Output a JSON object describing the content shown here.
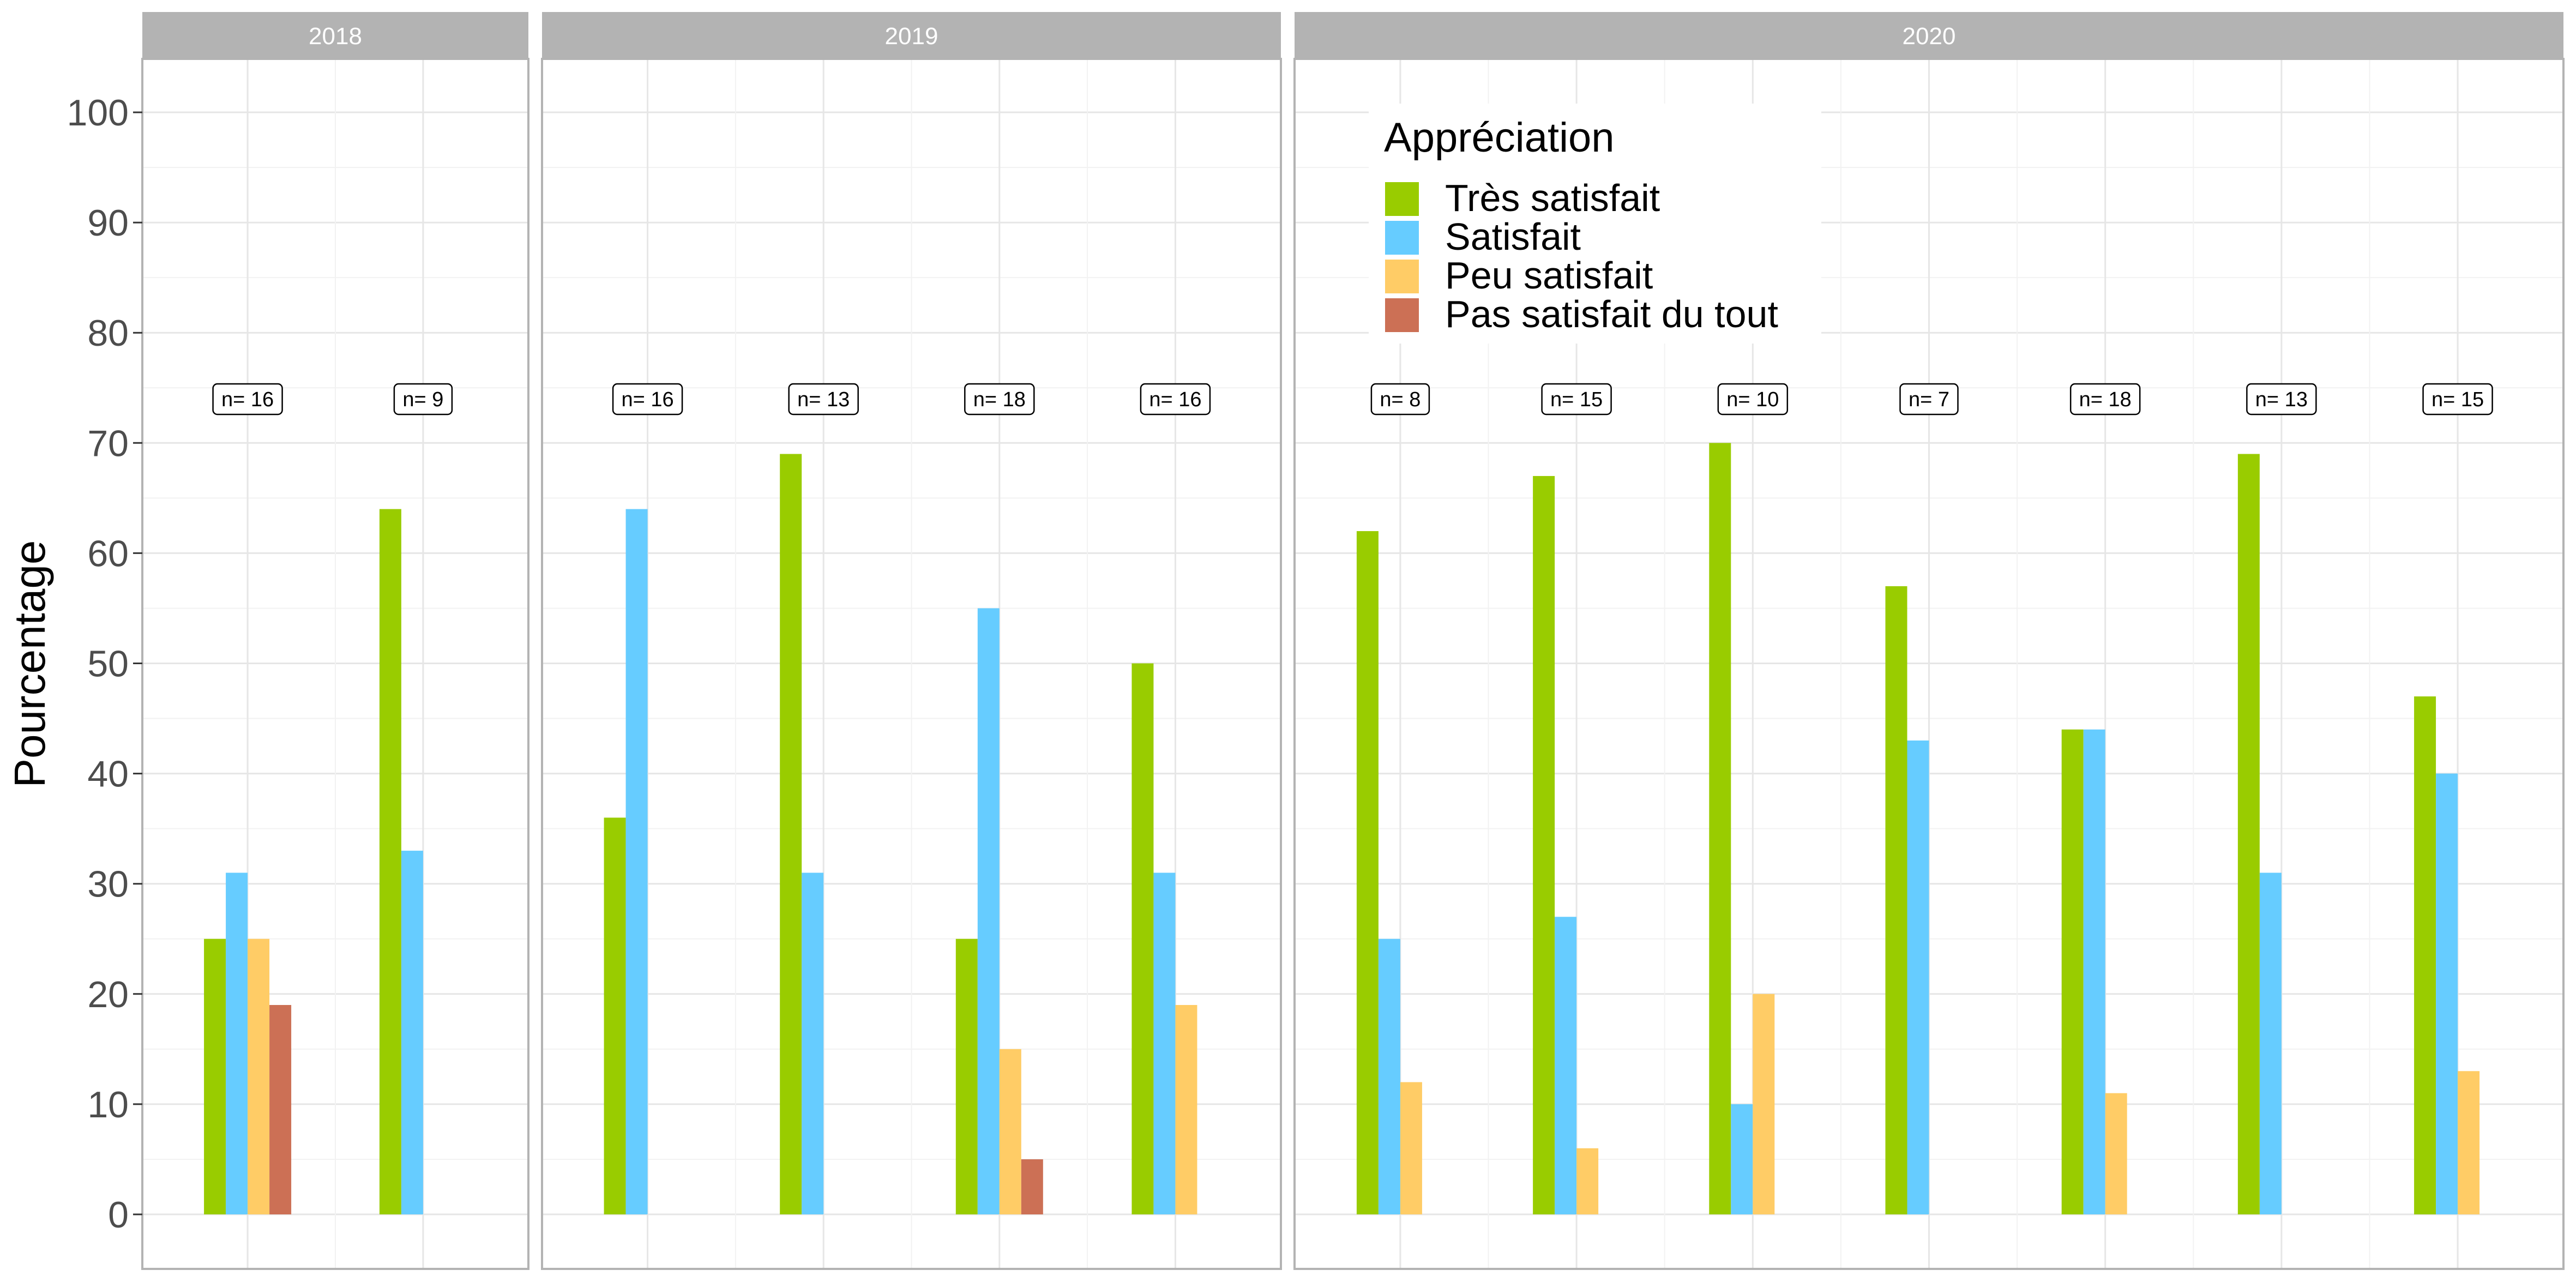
{
  "chart_data": {
    "type": "bar",
    "ylabel": "Pourcentage",
    "ylim": [
      0,
      105
    ],
    "yticks": [
      0,
      10,
      20,
      30,
      40,
      50,
      60,
      70,
      80,
      90,
      100
    ],
    "grid": true,
    "legend": {
      "title": "Appréciation",
      "placement": "top-inside-2020-panel",
      "entries": [
        "Très satisfait",
        "Satisfait",
        "Peu satisfait",
        "Pas satisfait du tout"
      ]
    },
    "series_colors": [
      "#99CC00",
      "#66CCFF",
      "#FFCC66",
      "#CC7055"
    ],
    "panels": [
      {
        "name": "2018",
        "groups": [
          {
            "n_label": "n= 16",
            "values": [
              25,
              31,
              25,
              19
            ]
          },
          {
            "n_label": "n= 9",
            "values": [
              64,
              33,
              0,
              0
            ]
          }
        ]
      },
      {
        "name": "2019",
        "groups": [
          {
            "n_label": "n= 16",
            "values": [
              36,
              64,
              0,
              0
            ]
          },
          {
            "n_label": "n= 13",
            "values": [
              69,
              31,
              0,
              0
            ]
          },
          {
            "n_label": "n= 18",
            "values": [
              25,
              55,
              15,
              5
            ]
          },
          {
            "n_label": "n= 16",
            "values": [
              50,
              31,
              19,
              0
            ]
          }
        ]
      },
      {
        "name": "2020",
        "groups": [
          {
            "n_label": "n= 8",
            "values": [
              62,
              25,
              12,
              0
            ]
          },
          {
            "n_label": "n= 15",
            "values": [
              67,
              27,
              6,
              0
            ]
          },
          {
            "n_label": "n= 10",
            "values": [
              70,
              10,
              20,
              0
            ]
          },
          {
            "n_label": "n= 7",
            "values": [
              57,
              43,
              0,
              0
            ]
          },
          {
            "n_label": "n= 18",
            "values": [
              44,
              44,
              11,
              0
            ]
          },
          {
            "n_label": "n= 13",
            "values": [
              69,
              31,
              0,
              0
            ]
          },
          {
            "n_label": "n= 15",
            "values": [
              47,
              40,
              13,
              0
            ]
          }
        ]
      }
    ]
  }
}
